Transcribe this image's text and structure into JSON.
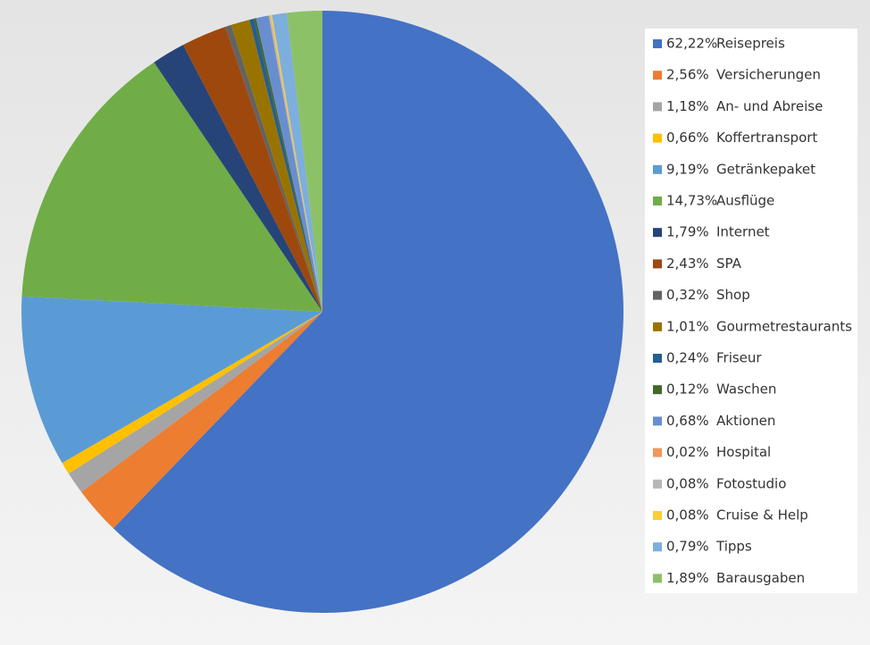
{
  "chart_data": {
    "type": "pie",
    "categories": [
      "Reisepreis",
      "Versicherungen",
      "An- und Abreise",
      "Koffertransport",
      "Getränkepaket",
      "Ausflüge",
      "Internet",
      "SPA",
      "Shop",
      "Gourmetrestaurants",
      "Friseur",
      "Waschen",
      "Aktionen",
      "Hospital",
      "Fotostudio",
      "Cruise & Help",
      "Tipps",
      "Barausgaben"
    ],
    "values": [
      62.22,
      2.56,
      1.18,
      0.66,
      9.19,
      14.73,
      1.79,
      2.43,
      0.32,
      1.01,
      0.24,
      0.12,
      0.68,
      0.02,
      0.08,
      0.08,
      0.79,
      1.89
    ],
    "value_labels": [
      "62,22%",
      "2,56%",
      "1,18%",
      "0,66%",
      "9,19%",
      "14,73%",
      "1,79%",
      "2,43%",
      "0,32%",
      "1,01%",
      "0,24%",
      "0,12%",
      "0,68%",
      "0,02%",
      "0,08%",
      "0,08%",
      "0,79%",
      "1,89%"
    ],
    "colors": [
      "#4472c4",
      "#ed7d31",
      "#a5a5a5",
      "#ffc000",
      "#5b9bd5",
      "#70ad47",
      "#264478",
      "#9e480e",
      "#636363",
      "#997300",
      "#255e91",
      "#43682b",
      "#698ed0",
      "#f1975a",
      "#b7b7b7",
      "#ffcd33",
      "#7cafdd",
      "#8cc168"
    ],
    "legend": "right"
  }
}
